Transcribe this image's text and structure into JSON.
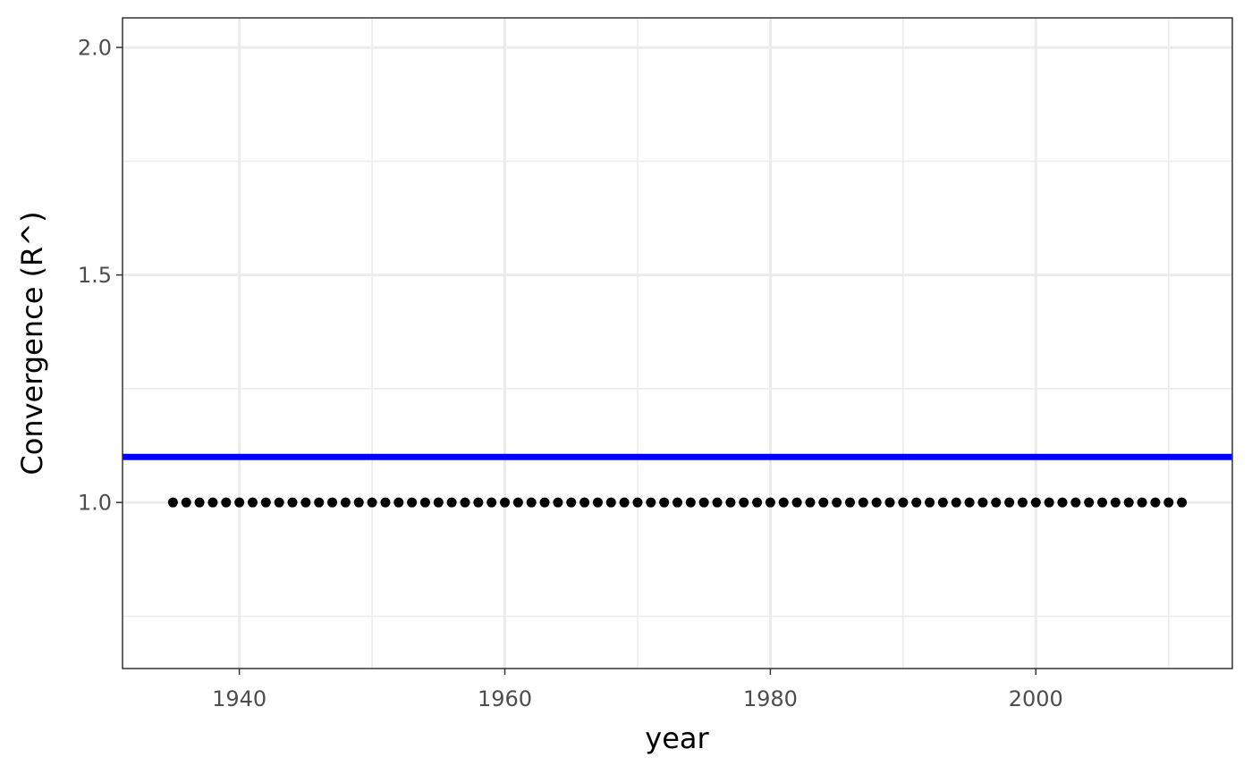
{
  "chart_data": {
    "type": "scatter",
    "xlabel": "year",
    "ylabel": "Convergence (R^)",
    "xlim": [
      1931.2,
      2014.8
    ],
    "ylim": [
      0.635,
      2.065
    ],
    "x_ticks": [
      1940,
      1960,
      1980,
      2000
    ],
    "x_tick_labels": [
      "1940",
      "1960",
      "1980",
      "2000"
    ],
    "x_minor_ticks": [
      1950,
      1970,
      1990,
      2010
    ],
    "y_ticks": [
      1.0,
      1.5,
      2.0
    ],
    "y_tick_labels": [
      "1.0",
      "1.5",
      "2.0"
    ],
    "y_minor_ticks": [
      0.75,
      1.25,
      1.75
    ],
    "grid": true,
    "points": {
      "x_start": 1935,
      "x_end": 2011,
      "x_step": 1,
      "y": 1.0,
      "color": "#000000"
    },
    "reference_line": {
      "orientation": "horizontal",
      "y": 1.1,
      "color": "#0000ff"
    }
  }
}
